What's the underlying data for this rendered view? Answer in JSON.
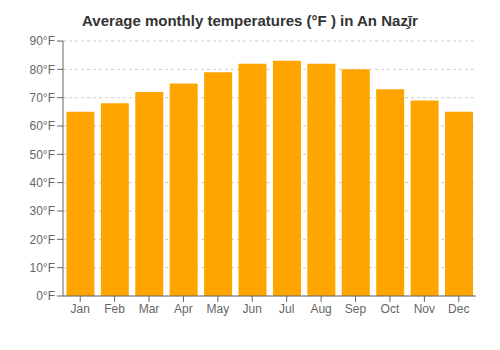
{
  "chart_data": {
    "type": "bar",
    "title": "Average monthly temperatures (°F ) in An Naz̧īr",
    "categories": [
      "Jan",
      "Feb",
      "Mar",
      "Apr",
      "May",
      "Jun",
      "Jul",
      "Aug",
      "Sep",
      "Oct",
      "Nov",
      "Dec"
    ],
    "values": [
      65,
      68,
      72,
      75,
      79,
      82,
      83,
      82,
      80,
      73,
      69,
      65
    ],
    "color": "#FFA500",
    "ylim": [
      0,
      90
    ],
    "yticks": [
      {
        "value": 0,
        "label": "0°F"
      },
      {
        "value": 10,
        "label": "10°F"
      },
      {
        "value": 20,
        "label": "20°F"
      },
      {
        "value": 30,
        "label": "30°F"
      },
      {
        "value": 40,
        "label": "40°F"
      },
      {
        "value": 50,
        "label": "50°F"
      },
      {
        "value": 60,
        "label": "60°F"
      },
      {
        "value": 70,
        "label": "70°F"
      },
      {
        "value": 80,
        "label": "80°F"
      },
      {
        "value": 90,
        "label": "90°F"
      }
    ],
    "grid": true
  }
}
